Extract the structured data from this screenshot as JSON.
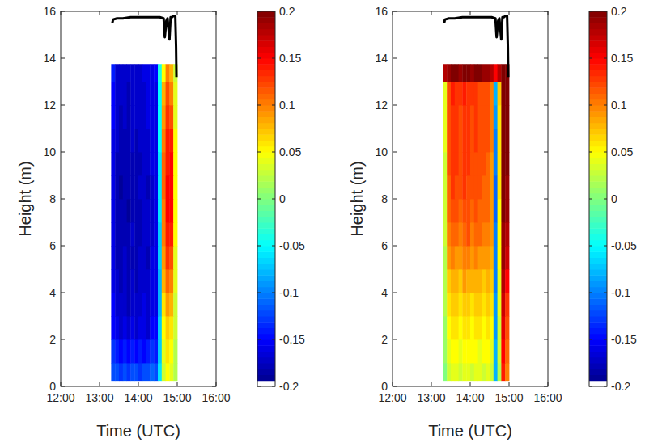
{
  "chart_data": [
    {
      "type": "heatmap",
      "x_label": "Time (UTC)",
      "y_label": "Height (m)",
      "xlim": [
        12,
        16
      ],
      "xticks": [
        {
          "value": 12,
          "label": "12:00"
        },
        {
          "value": 13,
          "label": "13:00"
        },
        {
          "value": 14,
          "label": "14:00"
        },
        {
          "value": 15,
          "label": "15:00"
        },
        {
          "value": 16,
          "label": "16:00"
        }
      ],
      "ylim": [
        0,
        16
      ],
      "yticks": [
        0,
        2,
        4,
        6,
        8,
        10,
        12,
        14,
        16
      ],
      "x_edges": [
        13.3,
        13.4,
        13.5,
        13.6,
        13.7,
        13.8,
        13.9,
        14.0,
        14.1,
        14.2,
        14.3,
        14.4,
        14.5,
        14.6,
        14.7,
        14.8,
        14.9,
        15.0
      ],
      "y_edges": [
        0.25,
        1,
        2,
        3,
        4,
        5,
        6,
        7,
        8,
        9,
        10,
        11,
        12,
        13,
        13.75
      ],
      "cells": [
        [
          -0.12,
          -0.12,
          -0.13,
          -0.12,
          -0.13,
          -0.12,
          -0.12,
          -0.13,
          -0.12,
          -0.12,
          -0.11,
          -0.12,
          -0.06,
          0.03,
          0.05,
          0.04,
          0.02
        ],
        [
          -0.13,
          -0.14,
          -0.15,
          -0.14,
          -0.15,
          -0.14,
          -0.15,
          -0.14,
          -0.15,
          -0.14,
          -0.13,
          -0.14,
          -0.07,
          0.04,
          0.06,
          0.05,
          0.02
        ],
        [
          -0.15,
          -0.16,
          -0.17,
          -0.16,
          -0.17,
          -0.16,
          -0.17,
          -0.16,
          -0.16,
          -0.17,
          -0.15,
          -0.15,
          -0.07,
          0.05,
          0.07,
          0.06,
          0.03
        ],
        [
          -0.15,
          -0.17,
          -0.17,
          -0.17,
          -0.18,
          -0.17,
          -0.17,
          -0.17,
          -0.16,
          -0.17,
          -0.16,
          -0.16,
          -0.08,
          0.06,
          0.09,
          0.08,
          0.03
        ],
        [
          -0.16,
          -0.17,
          -0.18,
          -0.17,
          -0.18,
          -0.17,
          -0.18,
          -0.17,
          -0.17,
          -0.17,
          -0.16,
          -0.16,
          -0.08,
          0.08,
          0.11,
          0.1,
          0.04
        ],
        [
          -0.16,
          -0.18,
          -0.18,
          -0.17,
          -0.18,
          -0.18,
          -0.18,
          -0.17,
          -0.17,
          -0.18,
          -0.16,
          -0.16,
          -0.07,
          0.09,
          0.13,
          0.12,
          0.04
        ],
        [
          -0.16,
          -0.18,
          -0.18,
          -0.18,
          -0.18,
          -0.17,
          -0.18,
          -0.18,
          -0.17,
          -0.17,
          -0.17,
          -0.16,
          -0.07,
          0.1,
          0.14,
          0.14,
          0.05
        ],
        [
          -0.16,
          -0.18,
          -0.18,
          -0.18,
          -0.19,
          -0.18,
          -0.18,
          -0.18,
          -0.17,
          -0.17,
          -0.17,
          -0.16,
          -0.06,
          0.1,
          0.15,
          0.15,
          0.05
        ],
        [
          -0.16,
          -0.18,
          -0.19,
          -0.18,
          -0.18,
          -0.18,
          -0.18,
          -0.17,
          -0.17,
          -0.18,
          -0.17,
          -0.16,
          -0.06,
          0.11,
          0.15,
          0.15,
          0.05
        ],
        [
          -0.16,
          -0.18,
          -0.18,
          -0.18,
          -0.18,
          -0.18,
          -0.18,
          -0.18,
          -0.17,
          -0.17,
          -0.16,
          -0.16,
          -0.06,
          0.11,
          0.14,
          0.15,
          0.05
        ],
        [
          -0.16,
          -0.17,
          -0.18,
          -0.18,
          -0.18,
          -0.17,
          -0.18,
          -0.17,
          -0.17,
          -0.17,
          -0.16,
          -0.16,
          -0.05,
          0.1,
          0.14,
          0.14,
          0.05
        ],
        [
          -0.15,
          -0.17,
          -0.18,
          -0.17,
          -0.18,
          -0.17,
          -0.17,
          -0.17,
          -0.17,
          -0.16,
          -0.16,
          -0.16,
          -0.05,
          0.09,
          0.13,
          0.12,
          0.04
        ],
        [
          -0.15,
          -0.17,
          -0.17,
          -0.17,
          -0.18,
          -0.17,
          -0.17,
          -0.17,
          -0.17,
          -0.16,
          -0.16,
          -0.16,
          -0.05,
          0.08,
          0.12,
          0.1,
          0.04
        ],
        [
          -0.14,
          -0.17,
          -0.17,
          -0.17,
          -0.17,
          -0.17,
          -0.17,
          -0.17,
          -0.16,
          -0.16,
          -0.16,
          -0.15,
          -0.04,
          0.05,
          0.1,
          0.08,
          0.03
        ]
      ],
      "color_range": [
        -0.2,
        0.2
      ],
      "color_ticks": [
        -0.2,
        -0.15,
        -0.1,
        -0.05,
        0,
        0.05,
        0.1,
        0.15,
        0.2
      ],
      "series": [
        {
          "type": "line",
          "color": "#000000",
          "x": [
            13.33,
            13.35,
            13.45,
            13.6,
            13.8,
            14.0,
            14.2,
            14.4,
            14.55,
            14.65,
            14.68,
            14.72,
            14.75,
            14.8,
            14.83,
            14.87,
            14.9,
            14.95,
            14.97,
            14.98
          ],
          "values": [
            15.5,
            15.65,
            15.7,
            15.7,
            15.75,
            15.75,
            15.75,
            15.75,
            15.75,
            15.7,
            14.9,
            15.6,
            15.7,
            14.8,
            15.75,
            15.75,
            15.8,
            15.8,
            14.5,
            13.2
          ]
        }
      ]
    },
    {
      "type": "heatmap",
      "x_label": "Time (UTC)",
      "y_label": "Height (m)",
      "xlim": [
        12,
        16
      ],
      "xticks": [
        {
          "value": 12,
          "label": "12:00"
        },
        {
          "value": 13,
          "label": "13:00"
        },
        {
          "value": 14,
          "label": "14:00"
        },
        {
          "value": 15,
          "label": "15:00"
        },
        {
          "value": 16,
          "label": "16:00"
        }
      ],
      "ylim": [
        0,
        16
      ],
      "yticks": [
        0,
        2,
        4,
        6,
        8,
        10,
        12,
        14,
        16
      ],
      "x_edges": [
        13.3,
        13.4,
        13.5,
        13.6,
        13.7,
        13.8,
        13.9,
        14.0,
        14.1,
        14.2,
        14.3,
        14.4,
        14.5,
        14.6,
        14.7,
        14.8,
        14.9,
        15.0
      ],
      "y_edges": [
        0.25,
        1,
        2,
        3,
        4,
        5,
        6,
        7,
        8,
        9,
        10,
        11,
        12,
        13,
        13.75
      ],
      "cells": [
        [
          0.0,
          0.03,
          0.04,
          0.04,
          0.03,
          0.04,
          0.04,
          0.03,
          0.04,
          0.04,
          0.03,
          0.04,
          0.03,
          -0.08,
          0.02,
          0.14,
          0.1
        ],
        [
          0.01,
          0.04,
          0.05,
          0.05,
          0.04,
          0.05,
          0.05,
          0.05,
          0.05,
          0.04,
          0.05,
          0.05,
          0.04,
          -0.08,
          0.03,
          0.15,
          0.11
        ],
        [
          0.01,
          0.05,
          0.06,
          0.06,
          0.05,
          0.06,
          0.06,
          0.05,
          0.06,
          0.06,
          0.05,
          0.06,
          0.05,
          -0.09,
          0.03,
          0.16,
          0.12
        ],
        [
          0.02,
          0.06,
          0.07,
          0.07,
          0.06,
          0.07,
          0.07,
          0.06,
          0.07,
          0.07,
          0.06,
          0.07,
          0.06,
          -0.09,
          0.04,
          0.17,
          0.13
        ],
        [
          0.02,
          0.07,
          0.08,
          0.08,
          0.07,
          0.09,
          0.08,
          0.08,
          0.08,
          0.08,
          0.07,
          0.08,
          0.07,
          -0.1,
          0.04,
          0.18,
          0.15
        ],
        [
          0.02,
          0.09,
          0.1,
          0.09,
          0.09,
          0.1,
          0.1,
          0.09,
          0.1,
          0.09,
          0.09,
          0.09,
          0.08,
          -0.1,
          0.05,
          0.19,
          0.17
        ],
        [
          0.03,
          0.1,
          0.11,
          0.11,
          0.1,
          0.11,
          0.12,
          0.1,
          0.11,
          0.11,
          0.1,
          0.1,
          0.09,
          -0.1,
          0.05,
          0.19,
          0.18
        ],
        [
          0.03,
          0.11,
          0.12,
          0.12,
          0.11,
          0.12,
          0.12,
          0.11,
          0.12,
          0.11,
          0.11,
          0.11,
          0.09,
          -0.11,
          0.05,
          0.2,
          0.19
        ],
        [
          0.03,
          0.11,
          0.13,
          0.12,
          0.12,
          0.13,
          0.12,
          0.12,
          0.12,
          0.12,
          0.11,
          0.11,
          0.09,
          -0.11,
          0.06,
          0.2,
          0.19
        ],
        [
          0.03,
          0.12,
          0.13,
          0.13,
          0.12,
          0.13,
          0.13,
          0.12,
          0.12,
          0.12,
          0.12,
          0.11,
          0.09,
          -0.1,
          0.06,
          0.2,
          0.2
        ],
        [
          0.04,
          0.12,
          0.13,
          0.13,
          0.12,
          0.13,
          0.13,
          0.12,
          0.13,
          0.12,
          0.12,
          0.12,
          0.1,
          -0.1,
          0.06,
          0.2,
          0.2
        ],
        [
          0.04,
          0.12,
          0.13,
          0.13,
          0.12,
          0.13,
          0.13,
          0.12,
          0.13,
          0.12,
          0.12,
          0.12,
          0.1,
          -0.09,
          0.06,
          0.2,
          0.2
        ],
        [
          0.04,
          0.12,
          0.14,
          0.13,
          0.13,
          0.14,
          0.13,
          0.13,
          0.13,
          0.12,
          0.12,
          0.12,
          0.1,
          -0.08,
          0.07,
          0.2,
          0.2
        ],
        [
          0.18,
          0.19,
          0.2,
          0.2,
          0.19,
          0.2,
          0.2,
          0.19,
          0.2,
          0.2,
          0.19,
          0.19,
          0.18,
          0.15,
          0.18,
          0.2,
          0.2
        ]
      ],
      "color_range": [
        -0.2,
        0.2
      ],
      "color_ticks": [
        -0.2,
        -0.15,
        -0.1,
        -0.05,
        0,
        0.05,
        0.1,
        0.15,
        0.2
      ],
      "series": [
        {
          "type": "line",
          "color": "#000000",
          "x": [
            13.33,
            13.35,
            13.45,
            13.6,
            13.8,
            14.0,
            14.2,
            14.4,
            14.55,
            14.65,
            14.68,
            14.72,
            14.75,
            14.8,
            14.83,
            14.87,
            14.9,
            14.95,
            14.97,
            14.98
          ],
          "values": [
            15.5,
            15.65,
            15.7,
            15.7,
            15.75,
            15.75,
            15.75,
            15.75,
            15.75,
            15.7,
            14.9,
            15.6,
            15.7,
            14.8,
            15.75,
            15.75,
            15.8,
            15.8,
            14.5,
            13.2
          ]
        }
      ]
    }
  ]
}
